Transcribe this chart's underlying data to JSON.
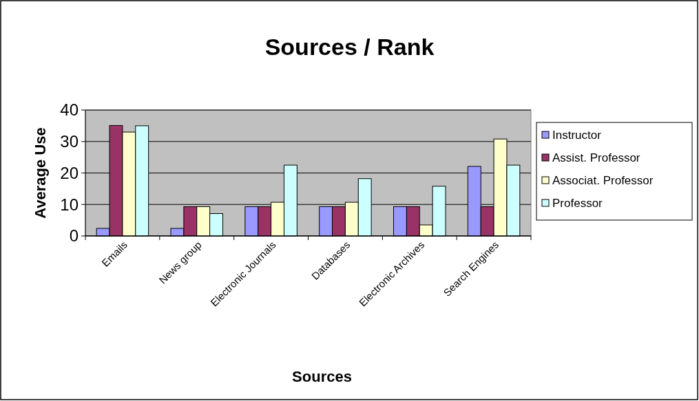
{
  "chart_data": {
    "type": "bar",
    "title": "Sources / Rank",
    "xlabel": "Sources",
    "ylabel": "Average Use",
    "categories": [
      "Emails",
      "News group",
      "Electronic Journals",
      "Databases",
      "Electronic Archives",
      "Search Engines"
    ],
    "series": [
      {
        "name": "Instructor",
        "color": "#9999ff",
        "values": [
          2.4,
          2.4,
          9.3,
          9.3,
          9.3,
          22.1
        ]
      },
      {
        "name": "Assist. Professor",
        "color": "#993366",
        "values": [
          35.1,
          9.3,
          9.3,
          9.3,
          9.3,
          9.3
        ]
      },
      {
        "name": "Associat. Professor",
        "color": "#ffffcc",
        "values": [
          33,
          9.3,
          10.7,
          10.7,
          3.5,
          30.8
        ]
      },
      {
        "name": "Professor",
        "color": "#ccffff",
        "values": [
          35,
          7.1,
          22.5,
          18.2,
          15.8,
          22.5
        ]
      }
    ],
    "ylim": [
      0,
      40
    ],
    "yticks": [
      0,
      10,
      20,
      30,
      40
    ],
    "grid": "y",
    "legend": "right"
  }
}
